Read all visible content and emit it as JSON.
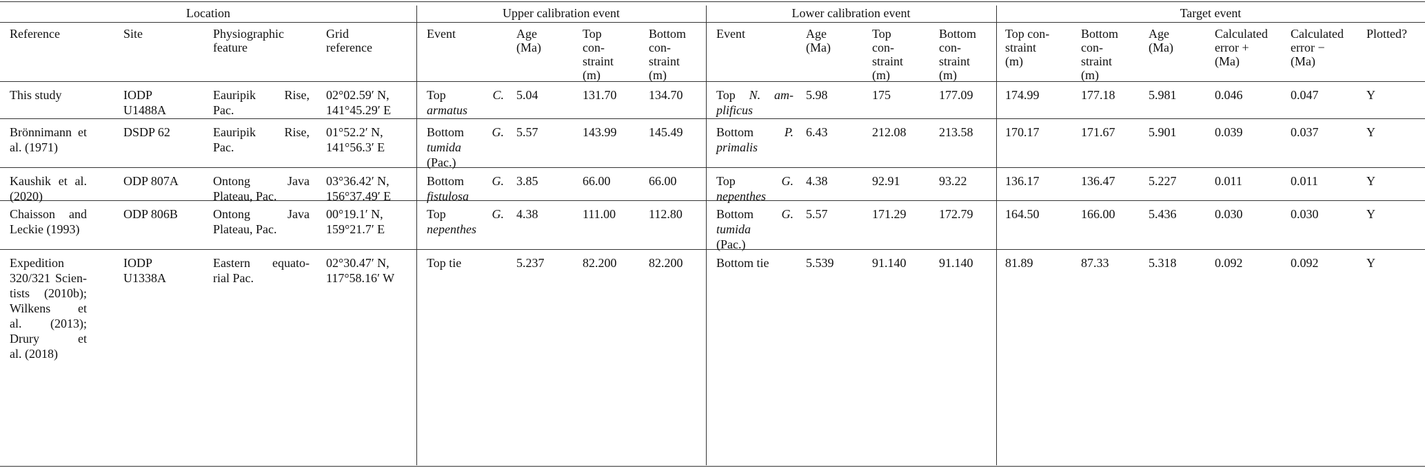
{
  "groups": [
    "Location",
    "Upper calibration event",
    "Lower calibration event",
    "Target event"
  ],
  "columns": [
    [
      "Reference"
    ],
    [
      "Site"
    ],
    [
      "Physiographic",
      "feature"
    ],
    [
      "Grid",
      "reference"
    ],
    [
      "Event"
    ],
    [
      "Age",
      "(Ma)"
    ],
    [
      "Top",
      "con-",
      "straint",
      "(m)"
    ],
    [
      "Bottom",
      "con-",
      "straint",
      "(m)"
    ],
    [
      "Event"
    ],
    [
      "Age",
      "(Ma)"
    ],
    [
      "Top",
      "con-",
      "straint",
      "(m)"
    ],
    [
      "Bottom",
      "con-",
      "straint",
      "(m)"
    ],
    [
      "Top con-",
      "straint",
      "(m)"
    ],
    [
      "Bottom",
      "con-",
      "straint",
      "(m)"
    ],
    [
      "Age",
      "(Ma)"
    ],
    [
      "Calculated",
      "error +",
      "(Ma)"
    ],
    [
      "Calculated",
      "error −",
      "(Ma)"
    ],
    [
      "Plotted?"
    ]
  ],
  "rows": [
    {
      "reference": [
        "This study"
      ],
      "site": [
        "IODP",
        "U1488A"
      ],
      "feature": [
        "Eauripik Rise,",
        "Pac."
      ],
      "grid": [
        "02°02.59′ N,",
        "141°45.29′ E"
      ],
      "upper_event": [
        [
          {
            "t": "Top "
          },
          {
            "t": "C.",
            "i": true
          }
        ],
        [
          {
            "t": "armatus",
            "i": true
          }
        ]
      ],
      "upper_age": "5.04",
      "upper_top": "131.70",
      "upper_bottom": "134.70",
      "lower_event": [
        [
          {
            "t": "Top "
          },
          {
            "t": "N. am-",
            "i": true
          }
        ],
        [
          {
            "t": "plificus",
            "i": true
          }
        ]
      ],
      "lower_age": "5.98",
      "lower_top": "175",
      "lower_bottom": "177.09",
      "target_top": "174.99",
      "target_bottom": "177.18",
      "target_age": "5.981",
      "err_plus": "0.046",
      "err_minus": "0.047",
      "plotted": "Y"
    },
    {
      "reference": [
        "Brönnimann et",
        "al. (1971)"
      ],
      "site": [
        "DSDP 62"
      ],
      "feature": [
        "Eauripik Rise,",
        "Pac."
      ],
      "grid": [
        "01°52.2′ N,",
        "141°56.3′ E"
      ],
      "upper_event": [
        [
          {
            "t": "Bottom "
          },
          {
            "t": "G.",
            "i": true
          }
        ],
        [
          {
            "t": "tumida",
            "i": true
          }
        ],
        [
          {
            "t": "(Pac.)"
          }
        ]
      ],
      "upper_age": "5.57",
      "upper_top": "143.99",
      "upper_bottom": "145.49",
      "lower_event": [
        [
          {
            "t": "Bottom "
          },
          {
            "t": "P.",
            "i": true
          }
        ],
        [
          {
            "t": "primalis",
            "i": true
          }
        ]
      ],
      "lower_age": "6.43",
      "lower_top": "212.08",
      "lower_bottom": "213.58",
      "target_top": "170.17",
      "target_bottom": "171.67",
      "target_age": "5.901",
      "err_plus": "0.039",
      "err_minus": "0.037",
      "plotted": "Y"
    },
    {
      "reference": [
        "Kaushik et al.",
        "(2020)"
      ],
      "site": [
        "ODP 807A"
      ],
      "feature": [
        "Ontong Java",
        "Plateau, Pac."
      ],
      "grid": [
        "03°36.42′ N,",
        "156°37.49′ E"
      ],
      "upper_event": [
        [
          {
            "t": "Bottom "
          },
          {
            "t": "G.",
            "i": true
          }
        ],
        [
          {
            "t": "fistulosa",
            "i": true
          }
        ]
      ],
      "upper_age": "3.85",
      "upper_top": "66.00",
      "upper_bottom": "66.00",
      "lower_event": [
        [
          {
            "t": "Top "
          },
          {
            "t": "G.",
            "i": true
          }
        ],
        [
          {
            "t": "nepenthes",
            "i": true
          }
        ]
      ],
      "lower_age": "4.38",
      "lower_top": "92.91",
      "lower_bottom": "93.22",
      "target_top": "136.17",
      "target_bottom": "136.47",
      "target_age": "5.227",
      "err_plus": "0.011",
      "err_minus": "0.011",
      "plotted": "Y"
    },
    {
      "reference": [
        "Chaisson and",
        "Leckie (1993)"
      ],
      "site": [
        "ODP 806B"
      ],
      "feature": [
        "Ontong Java",
        "Plateau, Pac."
      ],
      "grid": [
        "00°19.1′ N,",
        "159°21.7′ E"
      ],
      "upper_event": [
        [
          {
            "t": "Top "
          },
          {
            "t": "G.",
            "i": true
          }
        ],
        [
          {
            "t": "nepenthes",
            "i": true
          }
        ]
      ],
      "upper_age": "4.38",
      "upper_top": "111.00",
      "upper_bottom": "112.80",
      "lower_event": [
        [
          {
            "t": "Bottom "
          },
          {
            "t": "G.",
            "i": true
          }
        ],
        [
          {
            "t": "tumida",
            "i": true
          }
        ],
        [
          {
            "t": "(Pac.)"
          }
        ]
      ],
      "lower_age": "5.57",
      "lower_top": "171.29",
      "lower_bottom": "172.79",
      "target_top": "164.50",
      "target_bottom": "166.00",
      "target_age": "5.436",
      "err_plus": "0.030",
      "err_minus": "0.030",
      "plotted": "Y"
    },
    {
      "reference": [
        "Expedition",
        "320/321 Scien-",
        "tists (2010b);",
        "Wilkens et",
        "al. (2013);",
        "Drury et",
        "al. (2018)"
      ],
      "site": [
        "IODP",
        "U1338A"
      ],
      "feature": [
        "Eastern equato-",
        "rial Pac."
      ],
      "grid": [
        "02°30.47′ N,",
        "117°58.16′ W"
      ],
      "upper_event": [
        [
          {
            "t": "Top tie"
          }
        ]
      ],
      "upper_age": "5.237",
      "upper_top": "82.200",
      "upper_bottom": "82.200",
      "lower_event": [
        [
          {
            "t": "Bottom tie"
          }
        ]
      ],
      "lower_age": "5.539",
      "lower_top": "91.140",
      "lower_bottom": "91.140",
      "target_top": "81.89",
      "target_bottom": "87.33",
      "target_age": "5.318",
      "err_plus": "0.092",
      "err_minus": "0.092",
      "plotted": "Y"
    }
  ]
}
